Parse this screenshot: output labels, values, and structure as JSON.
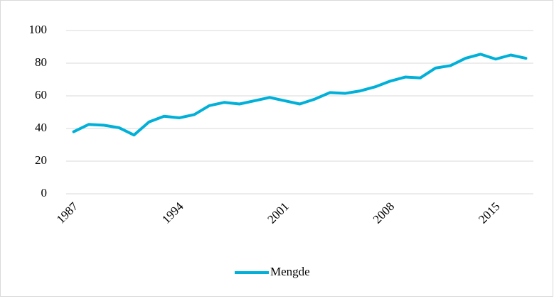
{
  "chart_data": {
    "type": "line",
    "categories": [
      "1987",
      null,
      null,
      null,
      null,
      null,
      null,
      "1994",
      null,
      null,
      null,
      null,
      null,
      null,
      "2001",
      null,
      null,
      null,
      null,
      null,
      null,
      "2008",
      null,
      null,
      null,
      null,
      null,
      null,
      "2015",
      null,
      null
    ],
    "series": [
      {
        "name": "Mengde",
        "color": "#00b0d8",
        "values": [
          38,
          42.5,
          42,
          40.5,
          36,
          44,
          47.5,
          46.5,
          48.5,
          54,
          56,
          55,
          57,
          59,
          57,
          55,
          58,
          62,
          61.5,
          63,
          65.5,
          69,
          71.5,
          71,
          77,
          78.5,
          83,
          85.5,
          82.5,
          85,
          83
        ]
      }
    ],
    "ylim": [
      0,
      100
    ],
    "yticks": [
      0,
      20,
      40,
      60,
      80,
      100
    ],
    "grid": true,
    "legend": "bottom"
  }
}
